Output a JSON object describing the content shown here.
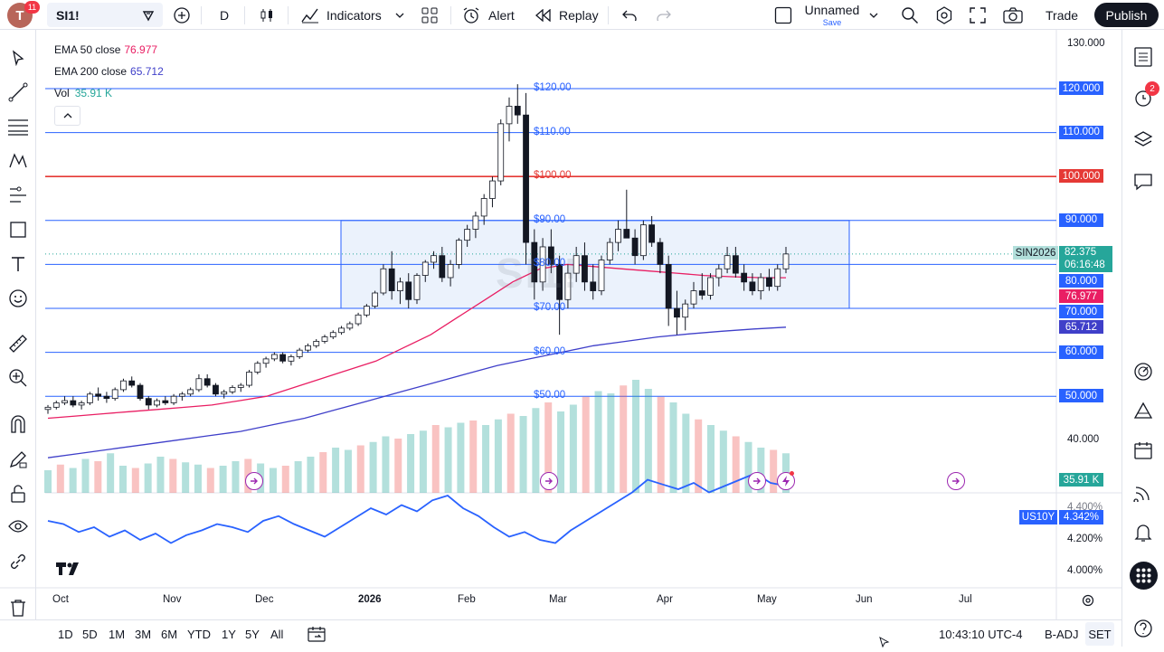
{
  "topbar": {
    "logo_letter": "T",
    "logo_badge": "11",
    "symbol": "SI1!",
    "interval": "D",
    "indicators_label": "Indicators",
    "alert_label": "Alert",
    "replay_label": "Replay",
    "layout_name": "Unnamed",
    "layout_save": "Save",
    "trade_label": "Trade",
    "publish_label": "Publish"
  },
  "legend": {
    "ema50_label": "EMA 50 close",
    "ema50_value": "76.977",
    "ema200_label": "EMA 200 close",
    "ema200_value": "65.712",
    "vol_label": "Vol",
    "vol_value": "35.91 K"
  },
  "watermark": "SI1!",
  "levels": [
    {
      "label": "$120.00",
      "price": 120
    },
    {
      "label": "$110.00",
      "price": 110
    },
    {
      "label": "$100.00",
      "price": 100
    },
    {
      "label": "$90.00",
      "price": 90
    },
    {
      "label": "$80.00",
      "price": 80
    },
    {
      "label": "$70.00",
      "price": 70
    },
    {
      "label": "$60.00",
      "price": 60
    },
    {
      "label": "$50.00",
      "price": 50
    }
  ],
  "price_axis": [
    "130.000",
    "120.000",
    "110.000",
    "100.000",
    "90.000",
    "80.000",
    "70.000",
    "60.000",
    "50.000",
    "40.000"
  ],
  "price_tags": {
    "symbol_tag": "SIN2026",
    "last_price": "82.375",
    "countdown": "06:16:48",
    "ema50": "76.977",
    "ema200": "65.712",
    "vol": "35.91 K"
  },
  "lower_pane": {
    "axis": [
      "4.400%",
      "4.200%",
      "4.000%"
    ],
    "symbol_tag": "US10Y",
    "value": "4.342%"
  },
  "time_axis": [
    "Oct",
    "Nov",
    "Dec",
    "2026",
    "Feb",
    "Mar",
    "Apr",
    "May",
    "Jun",
    "Jul"
  ],
  "bottombar": {
    "ranges": [
      "1D",
      "5D",
      "1M",
      "3M",
      "6M",
      "YTD",
      "1Y",
      "5Y",
      "All"
    ],
    "clock": "10:43:10 UTC-4",
    "adj": "B-ADJ",
    "session": "SET"
  },
  "right_toolbar": {
    "alerts_badge": "2"
  },
  "colors": {
    "up": "#26a69a",
    "down": "#ef5350",
    "ema50": "#e91e63",
    "ema200": "#3f3fc9",
    "level": "#2962ff",
    "level_100": "#e53935",
    "box_fill": "#e3ecfb",
    "us10y": "#2962ff"
  },
  "chart_data": {
    "type": "candlestick",
    "symbol": "SI1!",
    "interval": "D",
    "ohlc": [
      [
        47,
        48,
        46,
        47.5
      ],
      [
        47.5,
        49,
        47,
        48.5
      ],
      [
        48.5,
        50,
        48,
        49
      ],
      [
        49,
        50,
        47.5,
        48
      ],
      [
        48,
        49,
        47,
        48.5
      ],
      [
        48.5,
        51,
        48,
        50.5
      ],
      [
        50.5,
        52,
        49,
        50
      ],
      [
        50,
        51,
        48.5,
        49.5
      ],
      [
        49.5,
        52,
        49,
        51.5
      ],
      [
        51.5,
        54,
        51,
        53.5
      ],
      [
        53.5,
        54.5,
        52,
        52.5
      ],
      [
        52.5,
        53,
        49,
        49.5
      ],
      [
        49.5,
        50,
        47,
        48
      ],
      [
        48,
        49.5,
        47.5,
        49
      ],
      [
        49,
        50,
        48,
        48.5
      ],
      [
        48.5,
        50.5,
        48,
        50
      ],
      [
        50,
        51,
        49,
        50.5
      ],
      [
        50.5,
        52,
        50,
        51.5
      ],
      [
        51.5,
        55,
        51,
        54
      ],
      [
        54,
        55,
        52,
        52.5
      ],
      [
        52.5,
        53,
        50,
        50.5
      ],
      [
        50.5,
        51.5,
        49.5,
        51
      ],
      [
        51,
        52.5,
        50.5,
        52
      ],
      [
        52,
        53,
        51,
        52.5
      ],
      [
        52.5,
        56,
        52,
        55.5
      ],
      [
        55.5,
        58,
        55,
        57.5
      ],
      [
        57.5,
        59,
        56.5,
        58.5
      ],
      [
        58.5,
        60,
        58,
        59.5
      ],
      [
        59.5,
        60,
        57.5,
        58
      ],
      [
        58,
        59.5,
        57,
        59
      ],
      [
        59,
        61,
        58.5,
        60.5
      ],
      [
        60.5,
        62,
        60,
        61.5
      ],
      [
        61.5,
        63,
        61,
        62.5
      ],
      [
        62.5,
        64,
        62,
        63.5
      ],
      [
        63.5,
        65,
        63,
        64.5
      ],
      [
        64.5,
        66,
        64,
        65.5
      ],
      [
        65.5,
        67,
        65,
        66.5
      ],
      [
        66.5,
        69,
        66,
        68.5
      ],
      [
        68.5,
        71,
        68,
        70.5
      ],
      [
        70.5,
        74,
        70,
        73.5
      ],
      [
        73.5,
        80,
        73,
        79
      ],
      [
        79,
        83,
        72,
        74
      ],
      [
        74,
        77,
        71,
        76
      ],
      [
        76,
        78,
        70,
        72
      ],
      [
        72,
        78,
        71,
        77.5
      ],
      [
        77.5,
        81,
        76,
        80.5
      ],
      [
        80.5,
        83,
        79,
        82
      ],
      [
        82,
        84,
        76,
        77
      ],
      [
        77,
        81,
        75,
        80
      ],
      [
        80,
        86,
        79,
        85.5
      ],
      [
        85.5,
        89,
        84,
        88
      ],
      [
        88,
        92,
        86,
        91
      ],
      [
        91,
        96,
        89,
        95
      ],
      [
        95,
        100,
        93,
        99
      ],
      [
        99,
        113,
        98,
        112
      ],
      [
        112,
        118,
        108,
        116
      ],
      [
        116,
        121,
        112,
        114
      ],
      [
        114,
        119,
        80,
        85
      ],
      [
        85,
        88,
        72,
        76
      ],
      [
        76,
        86,
        74,
        84
      ],
      [
        84,
        88,
        78,
        80
      ],
      [
        80,
        82,
        64,
        72
      ],
      [
        72,
        80,
        70,
        78
      ],
      [
        78,
        84,
        76,
        82
      ],
      [
        82,
        85,
        74,
        76
      ],
      [
        76,
        80,
        72,
        74
      ],
      [
        74,
        82,
        73,
        81
      ],
      [
        81,
        86,
        80,
        85
      ],
      [
        85,
        90,
        83,
        88
      ],
      [
        88,
        97,
        86,
        86
      ],
      [
        86,
        88,
        80,
        82
      ],
      [
        82,
        90,
        81,
        89
      ],
      [
        89,
        91,
        84,
        85
      ],
      [
        85,
        86,
        78,
        80
      ],
      [
        80,
        82,
        66,
        70
      ],
      [
        70,
        74,
        64,
        68
      ],
      [
        68,
        72,
        65,
        71
      ],
      [
        71,
        76,
        70,
        74
      ],
      [
        74,
        78,
        72,
        73
      ],
      [
        73,
        78,
        72,
        77
      ],
      [
        77,
        80,
        75,
        79
      ],
      [
        79,
        84,
        78,
        82
      ],
      [
        82,
        84,
        77,
        78
      ],
      [
        78,
        80,
        74,
        76
      ],
      [
        76,
        78,
        73,
        74
      ],
      [
        74,
        78,
        72,
        77
      ],
      [
        77,
        79,
        74,
        75
      ],
      [
        75,
        80,
        74,
        79
      ],
      [
        79,
        84,
        78,
        82.375
      ]
    ],
    "ema50_values": [
      45,
      45.5,
      46,
      46.5,
      47,
      47.5,
      48,
      49,
      50,
      52,
      54,
      56,
      58,
      61,
      64,
      68,
      72,
      76,
      79,
      80,
      79.5,
      79,
      78.5,
      78,
      77.5,
      77.2,
      77,
      76.977
    ],
    "ema200_values": [
      36,
      37,
      38,
      39,
      40,
      41,
      42,
      43.5,
      45,
      47,
      49,
      51,
      53,
      55,
      57,
      58.5,
      60,
      61.5,
      62.5,
      63.5,
      64.2,
      64.8,
      65.3,
      65.712
    ],
    "us10y_values": [
      4.12,
      4.1,
      4.05,
      4.08,
      4.02,
      4.06,
      4.0,
      4.04,
      3.98,
      4.03,
      4.06,
      4.1,
      4.08,
      4.05,
      4.12,
      4.15,
      4.1,
      4.06,
      4.02,
      4.08,
      4.14,
      4.2,
      4.16,
      4.22,
      4.18,
      4.25,
      4.28,
      4.2,
      4.15,
      4.08,
      4.02,
      4.05,
      4.0,
      3.98,
      4.06,
      4.12,
      4.18,
      4.24,
      4.3,
      4.38,
      4.35,
      4.32,
      4.36,
      4.3,
      4.34,
      4.38,
      4.42,
      4.36,
      4.342
    ],
    "volume_values": [
      20,
      25,
      22,
      30,
      28,
      35,
      24,
      22,
      26,
      32,
      30,
      27,
      25,
      22,
      24,
      28,
      30,
      26,
      22,
      24,
      28,
      32,
      36,
      40,
      38,
      42,
      45,
      50,
      48,
      52,
      55,
      60,
      58,
      62,
      64,
      60,
      65,
      70,
      68,
      75,
      80,
      72,
      78,
      85,
      90,
      88,
      95,
      100,
      92,
      85,
      80,
      70,
      65,
      60,
      55,
      50,
      45,
      40,
      38,
      35
    ],
    "ylim": [
      35,
      132
    ]
  }
}
